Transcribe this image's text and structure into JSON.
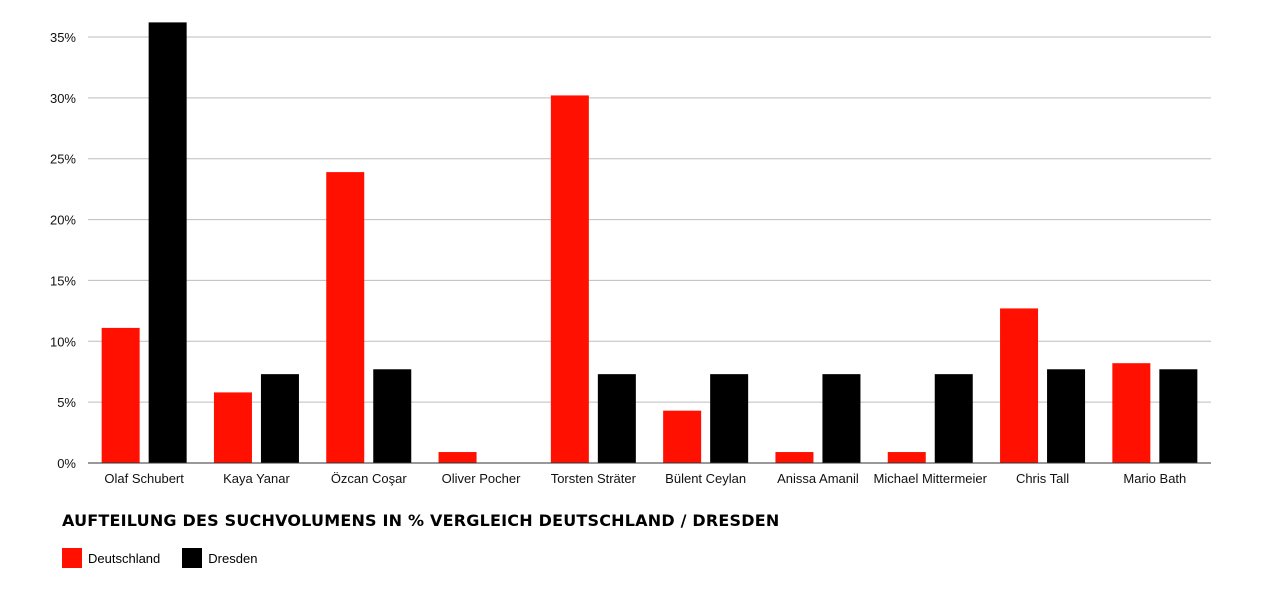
{
  "chart_data": {
    "type": "bar",
    "title": "AUFTEILUNG DES SUCHVOLUMENS IN % VERGLEICH DEUTSCHLAND / DRESDEN",
    "categories": [
      "Olaf Schubert",
      "Kaya Yanar",
      "Özcan Coşar",
      "Oliver Pocher",
      "Torsten Sträter",
      "Bülent Ceylan",
      "Anissa Amanil",
      "Michael Mittermeier",
      "Chris Tall",
      "Mario Bath"
    ],
    "series": [
      {
        "name": "Deutschland",
        "color": "#ff1000",
        "values": [
          11.1,
          5.8,
          23.9,
          0.9,
          30.2,
          4.3,
          0.9,
          0.9,
          12.7,
          8.2
        ]
      },
      {
        "name": "Dresden",
        "color": "#000000",
        "values": [
          36.2,
          7.3,
          7.7,
          0,
          7.3,
          7.3,
          7.3,
          7.3,
          7.7,
          7.7
        ]
      }
    ],
    "yticks": [
      "0%",
      "5%",
      "10%",
      "15%",
      "20%",
      "25%",
      "30%",
      "35%"
    ],
    "ylim": [
      0,
      35
    ],
    "grid": true,
    "legend_position": "bottom-left"
  }
}
